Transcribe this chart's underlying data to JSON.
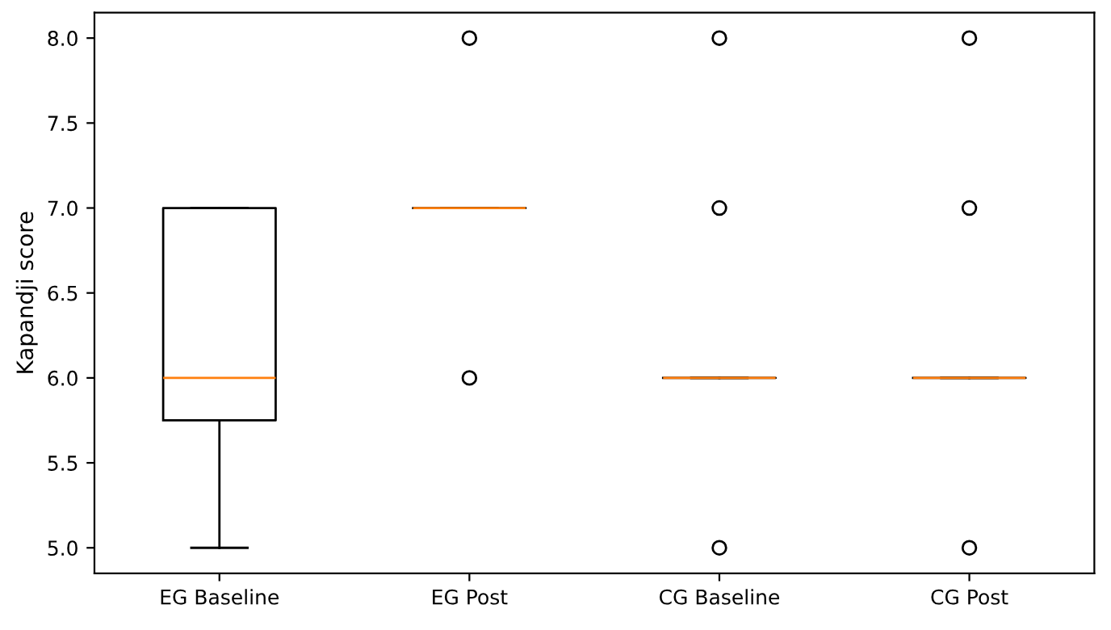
{
  "chart_data": {
    "type": "box",
    "ylabel": "Kapandji score",
    "categories": [
      "EG Baseline",
      "EG Post",
      "CG Baseline",
      "CG Post"
    ],
    "series": [
      {
        "color": "#000000",
        "boxes": [
          {
            "low": 5,
            "q1": 5.75,
            "median": 6,
            "q3": 7,
            "high": 7
          },
          {
            "low": 7,
            "q1": 7,
            "median": 7,
            "q3": 7,
            "high": 7,
            "outliers": [
              6,
              8
            ]
          },
          {
            "low": 6,
            "q1": 6,
            "median": 6,
            "q3": 6,
            "high": 6,
            "outliers": [
              5,
              7,
              8
            ]
          },
          {
            "low": 6,
            "q1": 6,
            "median": 6,
            "q3": 6,
            "high": 6,
            "outliers": [
              5,
              7,
              8
            ]
          }
        ]
      }
    ],
    "ylim": [
      4.85,
      8.15
    ],
    "yticks": [
      {
        "value": 5,
        "label": "5.0"
      },
      {
        "value": 5.5,
        "label": "5.5"
      },
      {
        "value": 6,
        "label": "6.0"
      },
      {
        "value": 6.5,
        "label": "6.5"
      },
      {
        "value": 7,
        "label": "7.0"
      },
      {
        "value": 7.5,
        "label": "7.5"
      },
      {
        "value": 8,
        "label": "8.0"
      }
    ],
    "grid": false
  }
}
